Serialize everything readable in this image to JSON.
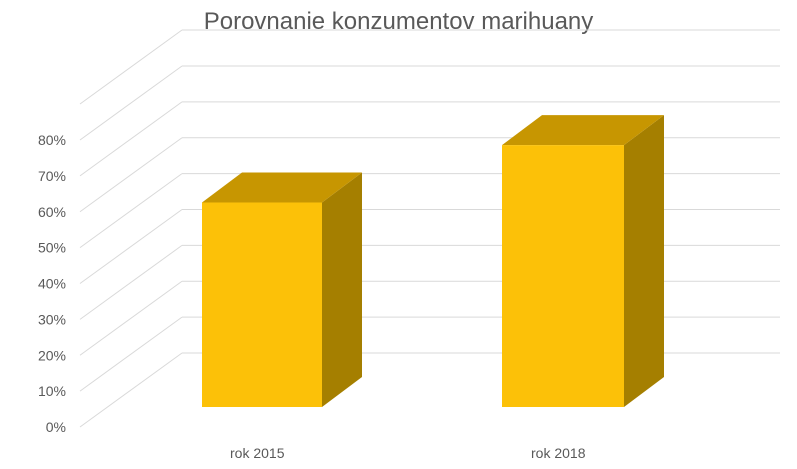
{
  "chart_data": {
    "type": "bar",
    "title": "Porovnanie konzumentov marihuany",
    "categories": [
      "rok 2015",
      "rok 2018"
    ],
    "series": [
      {
        "values": [
          57,
          73
        ]
      }
    ],
    "ylim": [
      0,
      80
    ],
    "y_tick_labels": [
      "0%",
      "10%",
      "20%",
      "30%",
      "40%",
      "50%",
      "60%",
      "70%",
      "80%"
    ],
    "grid": true,
    "style": "3d-column",
    "colors": {
      "bar_front": "#FCC108",
      "bar_top": "#C79601",
      "bar_side": "#A57F00",
      "grid": "#D9D9D9",
      "text": "#595959"
    }
  }
}
